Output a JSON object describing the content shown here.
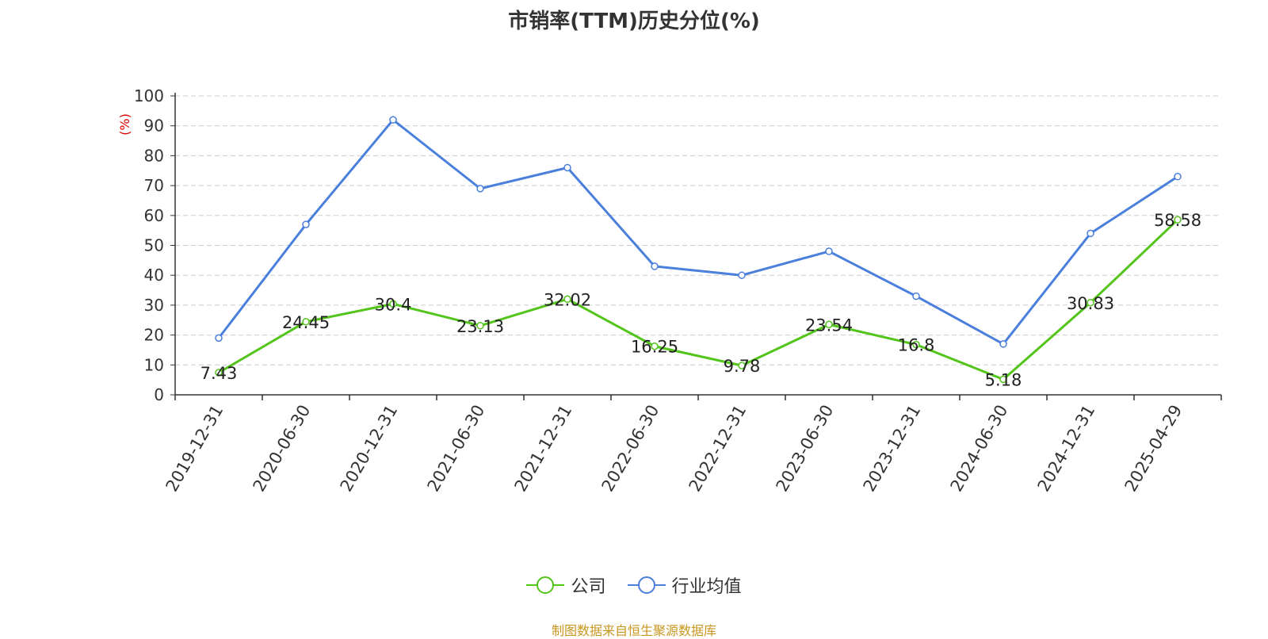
{
  "title": "市销率(TTM)历史分位(%)",
  "source_text": "制图数据来自恒生聚源数据库",
  "colors": {
    "company": "#52c41a",
    "industry": "#4a7fdc",
    "ylabel": "#e00000",
    "source": "#c8961e"
  },
  "legend": [
    {
      "label": "公司",
      "color": "#52c41a"
    },
    {
      "label": "行业均值",
      "color": "#4a7fdc"
    }
  ],
  "chart_data": {
    "type": "line",
    "title": "市销率(TTM)历史分位(%)",
    "xlabel": "",
    "ylabel": "(%)",
    "ylim": [
      0,
      100
    ],
    "yticks": [
      0,
      10,
      20,
      30,
      40,
      50,
      60,
      70,
      80,
      90,
      100
    ],
    "grid": true,
    "legend_position": "bottom",
    "categories": [
      "2019-12-31",
      "2020-06-30",
      "2020-12-31",
      "2021-06-30",
      "2021-12-31",
      "2022-06-30",
      "2022-12-31",
      "2023-06-30",
      "2023-12-31",
      "2024-06-30",
      "2024-12-31",
      "2025-04-29"
    ],
    "series": [
      {
        "name": "公司",
        "color": "#52c41a",
        "show_labels": true,
        "values": [
          7.43,
          24.45,
          30.4,
          23.13,
          32.02,
          16.25,
          9.78,
          23.54,
          16.8,
          5.18,
          30.83,
          58.58
        ]
      },
      {
        "name": "行业均值",
        "color": "#4a7fdc",
        "show_labels": false,
        "values": [
          19,
          57,
          92,
          69,
          76,
          43,
          40,
          48,
          33,
          17,
          54,
          73
        ]
      }
    ]
  }
}
